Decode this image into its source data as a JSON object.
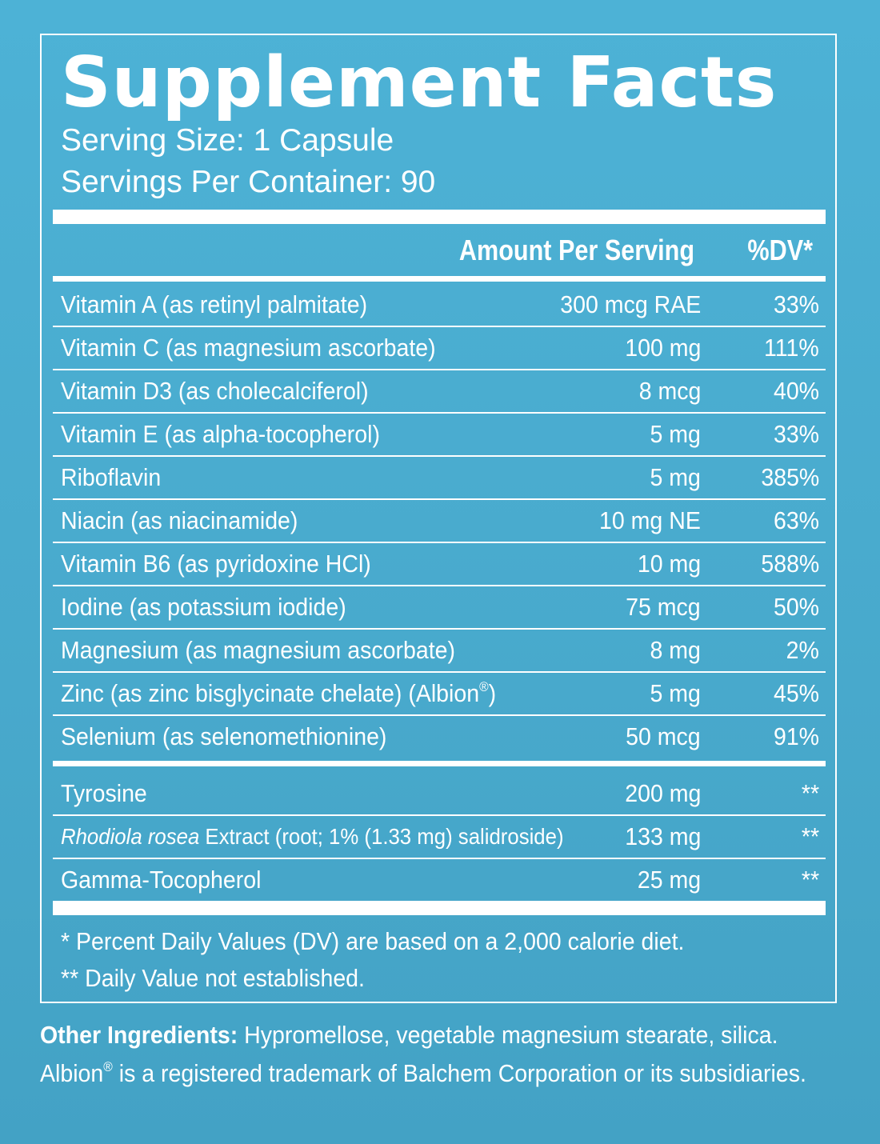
{
  "title": "Supplement Facts",
  "serving_size": "Serving Size: 1 Capsule",
  "servings_per_container": "Servings Per Container: 90",
  "header": {
    "amount": "Amount Per Serving",
    "dv": "%DV*"
  },
  "nutrients": [
    {
      "name": "Vitamin A (as retinyl palmitate)",
      "amount": "300 mcg RAE",
      "dv": "33%"
    },
    {
      "name": "Vitamin C (as magnesium ascorbate)",
      "amount": "100 mg",
      "dv": "111%"
    },
    {
      "name": "Vitamin D3 (as cholecalciferol)",
      "amount": "8 mcg",
      "dv": "40%"
    },
    {
      "name": "Vitamin E (as alpha-tocopherol)",
      "amount": "5 mg",
      "dv": "33%"
    },
    {
      "name": "Riboflavin",
      "amount": "5 mg",
      "dv": "385%"
    },
    {
      "name": "Niacin (as niacinamide)",
      "amount": "10 mg NE",
      "dv": "63%"
    },
    {
      "name": "Vitamin B6 (as pyridoxine HCl)",
      "amount": "10 mg",
      "dv": "588%"
    },
    {
      "name": "Iodine (as potassium iodide)",
      "amount": "75 mcg",
      "dv": "50%"
    },
    {
      "name": "Magnesium (as magnesium ascorbate)",
      "amount": "8 mg",
      "dv": "2%"
    },
    {
      "name": "Zinc (as zinc bisglycinate chelate) (Albion",
      "name_sup": "®",
      "name_end": ")",
      "amount": "5 mg",
      "dv": "45%"
    },
    {
      "name": "Selenium (as selenomethionine)",
      "amount": "50 mcg",
      "dv": "91%"
    }
  ],
  "other_nutrients": [
    {
      "name": "Tyrosine",
      "amount": "200 mg",
      "dv": "**"
    },
    {
      "name_italic": "Rhodiola rosea",
      "name": " Extract (root; 1% (1.33 mg) salidroside)",
      "amount": "133 mg",
      "dv": "**"
    },
    {
      "name": "Gamma-Tocopherol",
      "amount": "25 mg",
      "dv": "**"
    }
  ],
  "footnotes": [
    "* Percent Daily Values (DV) are based on a 2,000 calorie diet.",
    "** Daily Value not established."
  ],
  "other_ingredients": {
    "label": "Other Ingredients:",
    "text": " Hypromellose, vegetable magnesium stearate, silica."
  },
  "trademark": {
    "pre": "Albion",
    "sup": "®",
    "text": " is a registered trademark of Balchem Corporation or its subsidiaries."
  },
  "colors": {
    "background": "#48a9cc",
    "foreground": "#ffffff"
  }
}
